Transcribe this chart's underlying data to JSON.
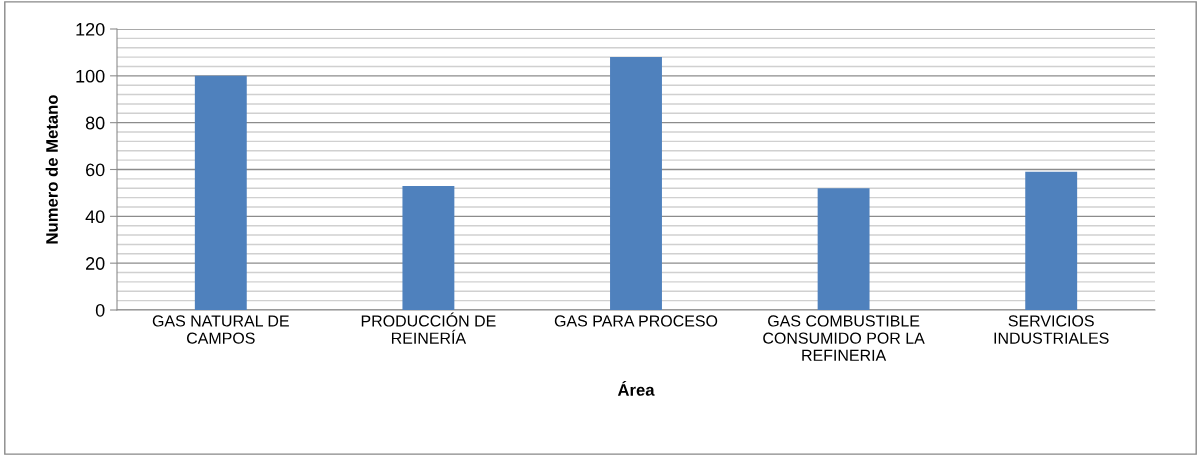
{
  "chart_data": {
    "type": "bar",
    "xlabel": "Área",
    "ylabel": "Numero de Metano",
    "categories": [
      "GAS NATURAL DE\nCAMPOS",
      "PRODUCCIÓN DE\nREINERÍA",
      "GAS PARA PROCESO",
      "GAS COMBUSTIBLE\nCONSUMIDO POR LA\nREFINERIA",
      "SERVICIOS\nINDUSTRIALES"
    ],
    "values": [
      100,
      53,
      108,
      52,
      59
    ],
    "color": "#4f81bd",
    "ylim": [
      0,
      120
    ],
    "yticks": [
      0,
      20,
      40,
      60,
      80,
      100,
      120
    ],
    "grid": "y"
  }
}
